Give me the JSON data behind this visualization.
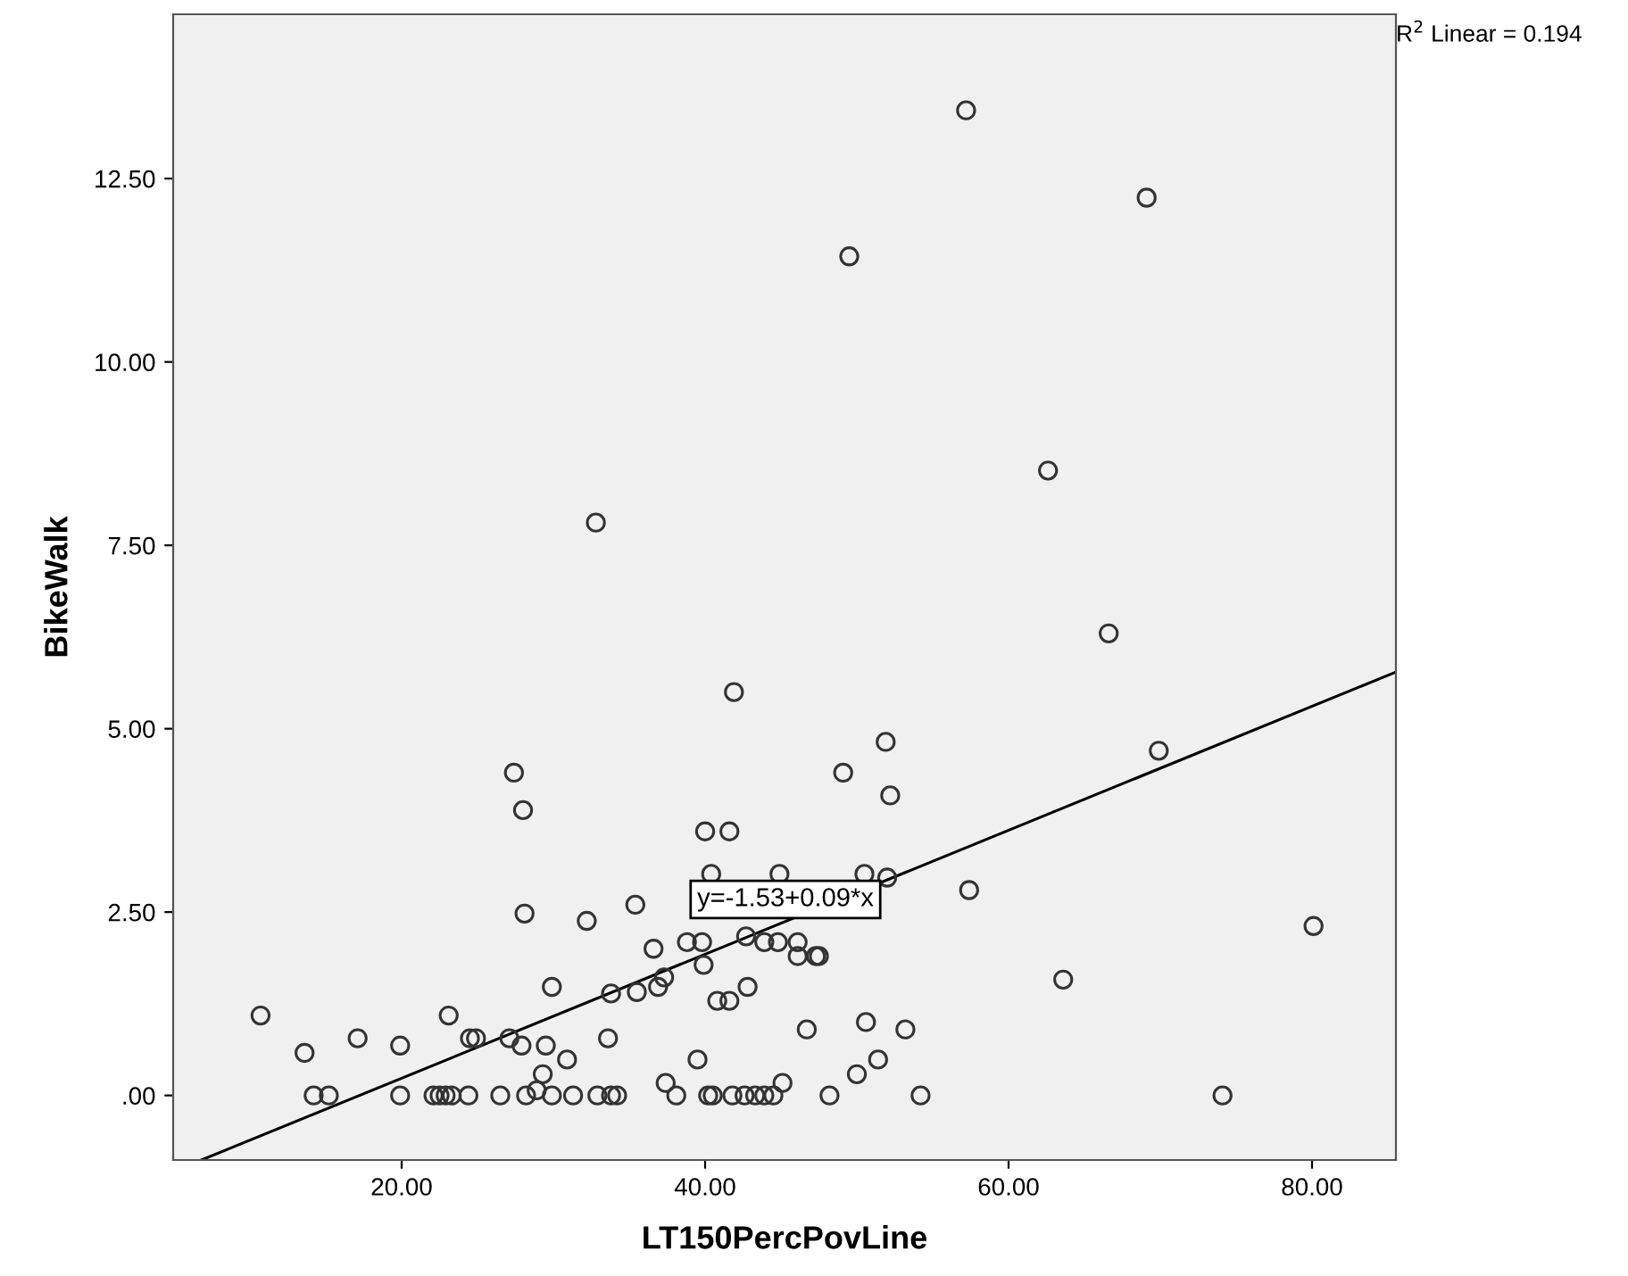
{
  "chart_data": {
    "type": "scatter",
    "xlabel": "LT150PercPovLine",
    "ylabel": "BikeWalk",
    "xlim": [
      4.94,
      85.53
    ],
    "ylim": [
      -0.88,
      14.74
    ],
    "xticks": [
      {
        "value": 20,
        "label": "20.00"
      },
      {
        "value": 40,
        "label": "40.00"
      },
      {
        "value": 60,
        "label": "60.00"
      },
      {
        "value": 80,
        "label": "80.00"
      }
    ],
    "yticks": [
      {
        "value": 0,
        "label": ".00"
      },
      {
        "value": 2.5,
        "label": "2.50"
      },
      {
        "value": 5,
        "label": "5.00"
      },
      {
        "value": 7.5,
        "label": "7.50"
      },
      {
        "value": 10,
        "label": "10.00"
      },
      {
        "value": 12.5,
        "label": "12.50"
      }
    ],
    "grid": false,
    "marker": "circle",
    "annotations": [
      "y=-1.53+0.09*x",
      "R$^{2}$ Linear = 0.194"
    ],
    "series": [
      {
        "color": "#333333",
        "x": [
          10.7,
          13.6,
          14.2,
          15.2,
          17.1,
          19.9,
          19.9,
          22.1,
          22.5,
          22.9,
          23.3,
          24.4,
          26.5,
          28.2,
          29.9,
          31.3,
          32.9,
          33.8,
          23.1,
          24.5,
          24.9,
          27.1,
          27.9,
          29.5,
          30.9,
          29.3,
          28.9,
          29.9,
          28.1,
          27.4,
          28.0,
          32.2,
          33.8,
          33.6,
          51.9,
          49.1,
          52.2,
          40.0,
          41.6,
          40.4,
          44.9,
          50.5,
          52.0,
          57.4,
          35.4,
          38.8,
          39.8,
          36.6,
          42.7,
          43.9,
          44.8,
          46.1,
          46.1,
          47.3,
          47.5,
          39.9,
          37.3,
          36.9,
          35.5,
          40.8,
          41.6,
          42.8,
          39.5,
          46.7,
          50.6,
          53.2,
          51.4,
          50.0,
          37.4,
          45.1,
          34.2,
          38.1,
          40.2,
          40.5,
          41.8,
          42.6,
          43.3,
          43.9,
          44.5,
          48.2,
          54.2,
          69.9,
          80.1,
          63.6,
          74.1,
          57.2,
          69.1,
          49.5,
          62.6,
          66.6,
          32.8,
          41.9
        ],
        "values": [
          1.09,
          0.58,
          0,
          0,
          0.78,
          0,
          0.68,
          0,
          0,
          0,
          0,
          0,
          0,
          0,
          0,
          0,
          0,
          0,
          1.09,
          0.78,
          0.78,
          0.78,
          0.68,
          0.68,
          0.49,
          0.29,
          0.07,
          1.48,
          2.48,
          4.4,
          3.89,
          2.38,
          1.39,
          0.78,
          4.82,
          4.4,
          4.09,
          3.6,
          3.6,
          3.02,
          3.02,
          3.02,
          2.97,
          2.8,
          2.6,
          2.09,
          2.09,
          2.0,
          2.17,
          2.09,
          2.09,
          2.09,
          1.9,
          1.9,
          1.9,
          1.78,
          1.61,
          1.48,
          1.41,
          1.29,
          1.29,
          1.48,
          0.49,
          0.9,
          1.0,
          0.9,
          0.49,
          0.29,
          0.17,
          0.17,
          0,
          0,
          0,
          0,
          0,
          0,
          0,
          0,
          0,
          0,
          0,
          4.7,
          2.31,
          1.58,
          0,
          13.43,
          12.24,
          11.44,
          8.52,
          6.3,
          7.81,
          5.5
        ]
      },
      {
        "type": "line",
        "color": "#000000",
        "marker": "none",
        "x": [
          6.8,
          85.5
        ],
        "values": [
          -0.88,
          5.77
        ]
      }
    ]
  }
}
